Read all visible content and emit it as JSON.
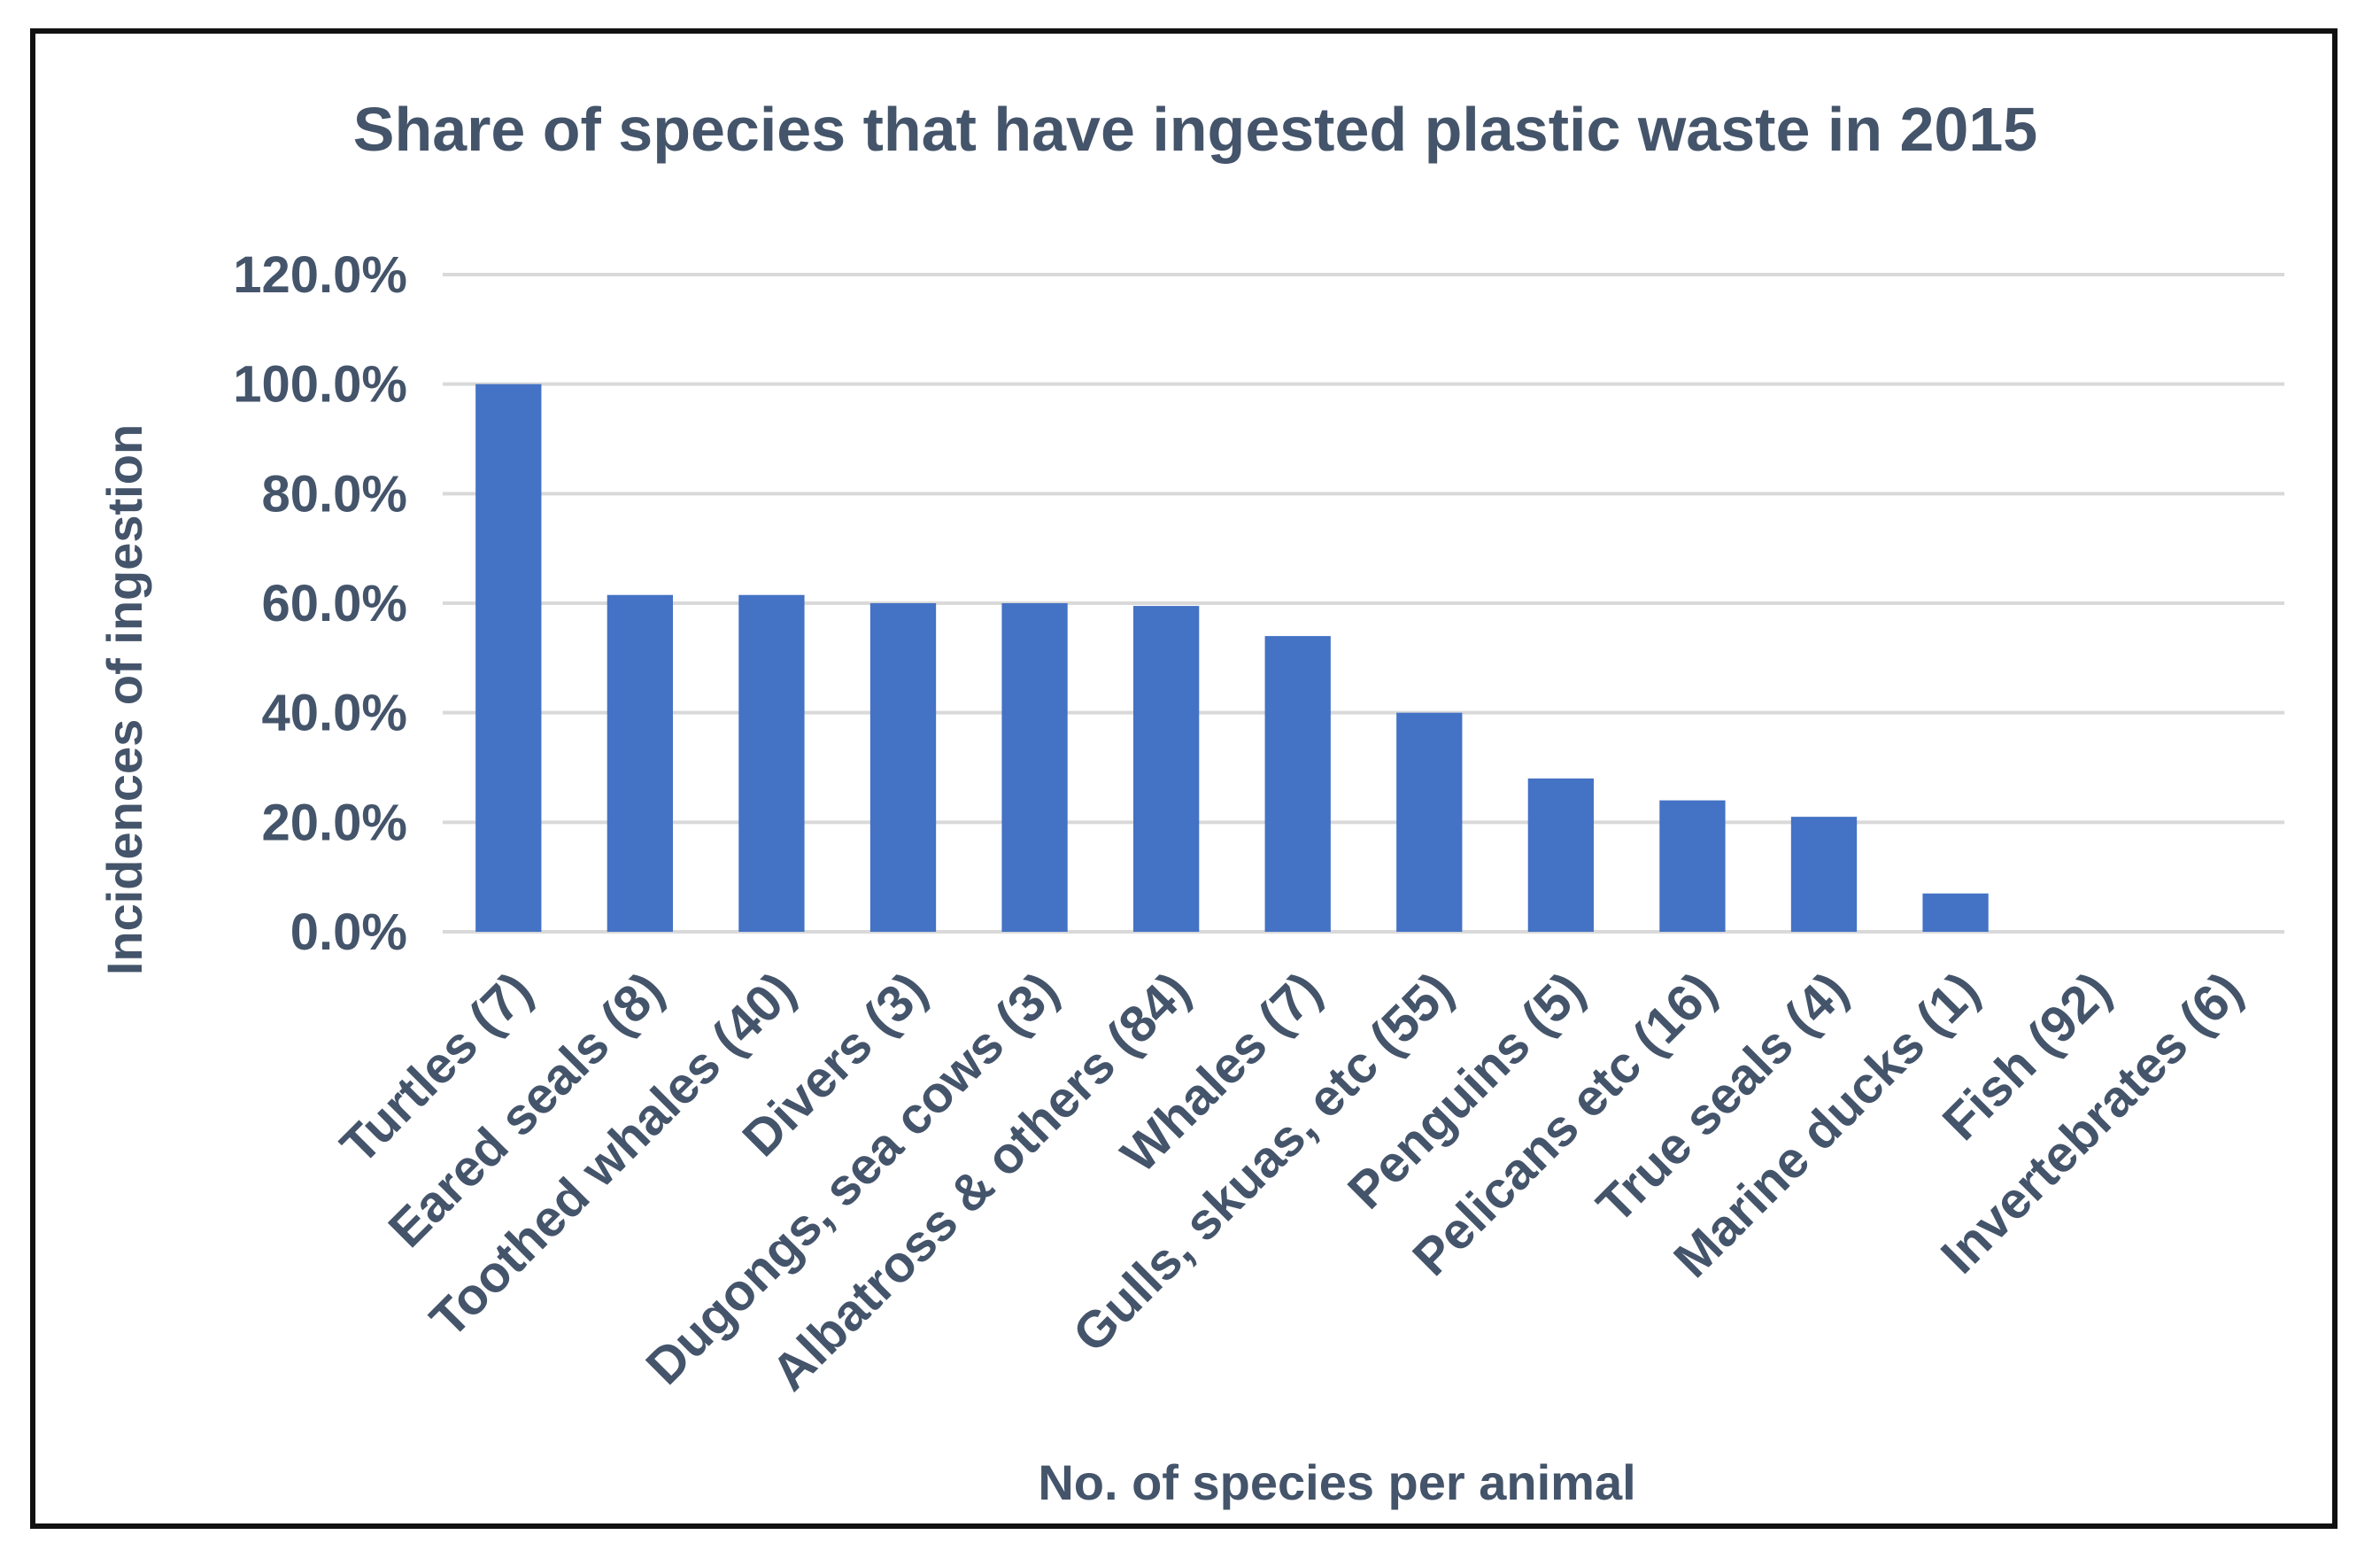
{
  "chart_data": {
    "type": "bar",
    "title": "Share of species that have ingested plastic waste in 2015",
    "xlabel": "No. of species per animal",
    "ylabel": "Incidences of ingestion",
    "ylim": [
      0,
      120
    ],
    "yticks": [
      "0.0%",
      "20.0%",
      "40.0%",
      "60.0%",
      "80.0%",
      "100.0%",
      "120.0%"
    ],
    "grid": true,
    "legend": "none",
    "bar_color": "#4472c4",
    "categories": [
      "Turtles (7)",
      "Eared seals (8)",
      "Toothed whales (40)",
      "Divers (3)",
      "Dugongs, sea cows (3)",
      "Albatross & others (84)",
      "Whales (7)",
      "Gulls, skuas, etc (55)",
      "Penguins (5)",
      "Pelicans etc (16)",
      "True seals (4)",
      "Marine ducks (1)",
      "Fish (92)",
      "Invertebrates (6)"
    ],
    "values": [
      100.0,
      61.5,
      61.5,
      60.0,
      60.0,
      59.5,
      54.0,
      40.0,
      28.0,
      24.0,
      21.0,
      7.0,
      0.0,
      0.0
    ]
  }
}
